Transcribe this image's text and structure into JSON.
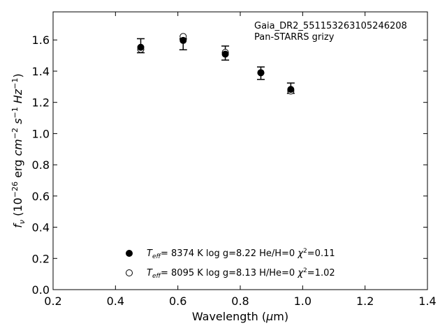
{
  "chart_data": {
    "type": "scatter",
    "xlim": [
      0.2,
      1.4
    ],
    "ylim": [
      0.0,
      1.78
    ],
    "x_ticks": [
      "0.2",
      "0.4",
      "0.6",
      "0.8",
      "1.0",
      "1.2",
      "1.4"
    ],
    "y_ticks": [
      "0.0",
      "0.2",
      "0.4",
      "0.6",
      "0.8",
      "1.0",
      "1.2",
      "1.4",
      "1.6"
    ],
    "xlabel": "Wavelength (μm)",
    "ylabel": "f_ν (10^-26 erg cm^-2 s^-1 Hz^-1)",
    "annotations": [
      "Gaia_DR2_551153263105246208",
      "Pan-STARRS grizy"
    ],
    "observed": {
      "x": [
        0.481,
        0.617,
        0.752,
        0.866,
        0.962
      ],
      "y": [
        1.563,
        1.572,
        1.516,
        1.387,
        1.291
      ],
      "err": [
        0.045,
        0.035,
        0.045,
        0.04,
        0.033
      ]
    },
    "series": [
      {
        "name": "T_eff= 8374 K log g=8.22 He/H=0 χ²=0.11",
        "marker": "filled",
        "x": [
          0.481,
          0.617,
          0.752,
          0.866,
          0.962
        ],
        "y": [
          1.553,
          1.597,
          1.509,
          1.39,
          1.283
        ]
      },
      {
        "name": "T_eff= 8095 K log g=8.13 H/He=0 χ²=1.02",
        "marker": "open",
        "x": [
          0.481,
          0.617,
          0.752,
          0.866,
          0.962
        ],
        "y": [
          1.54,
          1.622,
          1.52,
          1.39,
          1.273
        ]
      }
    ],
    "legend": {
      "placement": "bottom-center",
      "entries": [
        {
          "teff": "8374 K",
          "logg": "log g=8.22",
          "comp": "He/H=0",
          "chi": "=0.11"
        },
        {
          "teff": "8095 K",
          "logg": "log g=8.13",
          "comp": "H/He=0",
          "chi": "=1.02"
        }
      ]
    }
  }
}
